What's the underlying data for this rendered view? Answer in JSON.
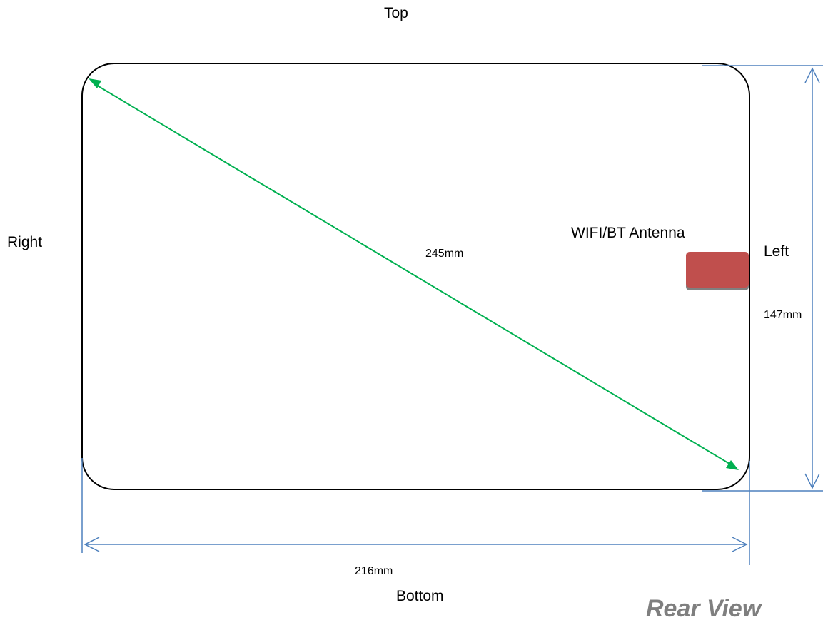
{
  "labels": {
    "top": "Top",
    "right": "Right",
    "left": "Left",
    "bottom": "Bottom"
  },
  "dimensions": {
    "diagonal": "245mm",
    "height": "147mm",
    "width": "216mm"
  },
  "antenna": {
    "label": "WIFI/BT Antenna",
    "color": "#c0504d"
  },
  "view_title": "Rear View",
  "colors": {
    "outline": "#000000",
    "diagonal_arrow": "#00b050",
    "dimension_lines": "#4f81bd",
    "view_title": "#7f7f7f"
  }
}
